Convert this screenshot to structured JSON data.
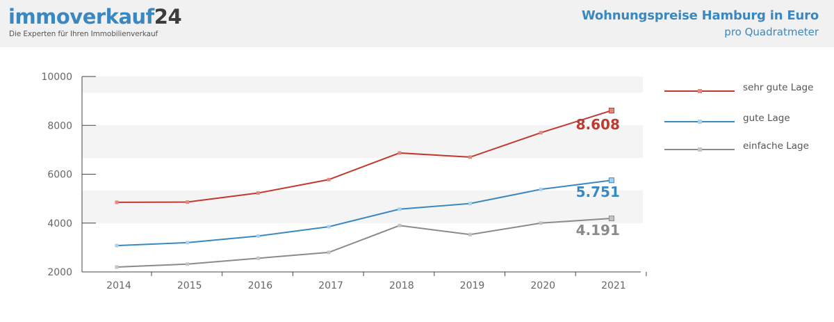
{
  "header": {
    "brand_main": "immoverkauf",
    "brand_num": "24",
    "tagline": "Die Experten für Ihren Immobilienverkauf",
    "title": "Wohnungspreise Hamburg in Euro",
    "subtitle": "pro Quadratmeter"
  },
  "colors": {
    "brand_blue": "#3a88bf",
    "header_bg": "#f1f1f2",
    "band": "#f4f4f4"
  },
  "chart_data": {
    "type": "line",
    "title": "Wohnungspreise Hamburg in Euro",
    "subtitle": "pro Quadratmeter",
    "x": [
      "2014",
      "2015",
      "2016",
      "2017",
      "2018",
      "2019",
      "2020",
      "2021"
    ],
    "ylim": [
      2000,
      10000
    ],
    "yticks": [
      "2000",
      "4000",
      "6000",
      "8000",
      "10000"
    ],
    "legend_position": "right",
    "series": [
      {
        "name": "sehr gute Lage",
        "color": "#c0392f",
        "marker_color": "#e08a84",
        "values": [
          4850,
          4860,
          5230,
          5780,
          6870,
          6700,
          7700,
          8608
        ],
        "end_label": "8.608"
      },
      {
        "name": "gute Lage",
        "color": "#3a88bf",
        "marker_color": "#a9d2ee",
        "values": [
          3080,
          3200,
          3470,
          3850,
          4570,
          4800,
          5380,
          5751
        ],
        "end_label": "5.751"
      },
      {
        "name": "einfache Lage",
        "color": "#8a8a8a",
        "marker_color": "#c4c4c4",
        "values": [
          2200,
          2320,
          2560,
          2800,
          3900,
          3530,
          4000,
          4191
        ],
        "end_label": "4.191"
      }
    ]
  }
}
